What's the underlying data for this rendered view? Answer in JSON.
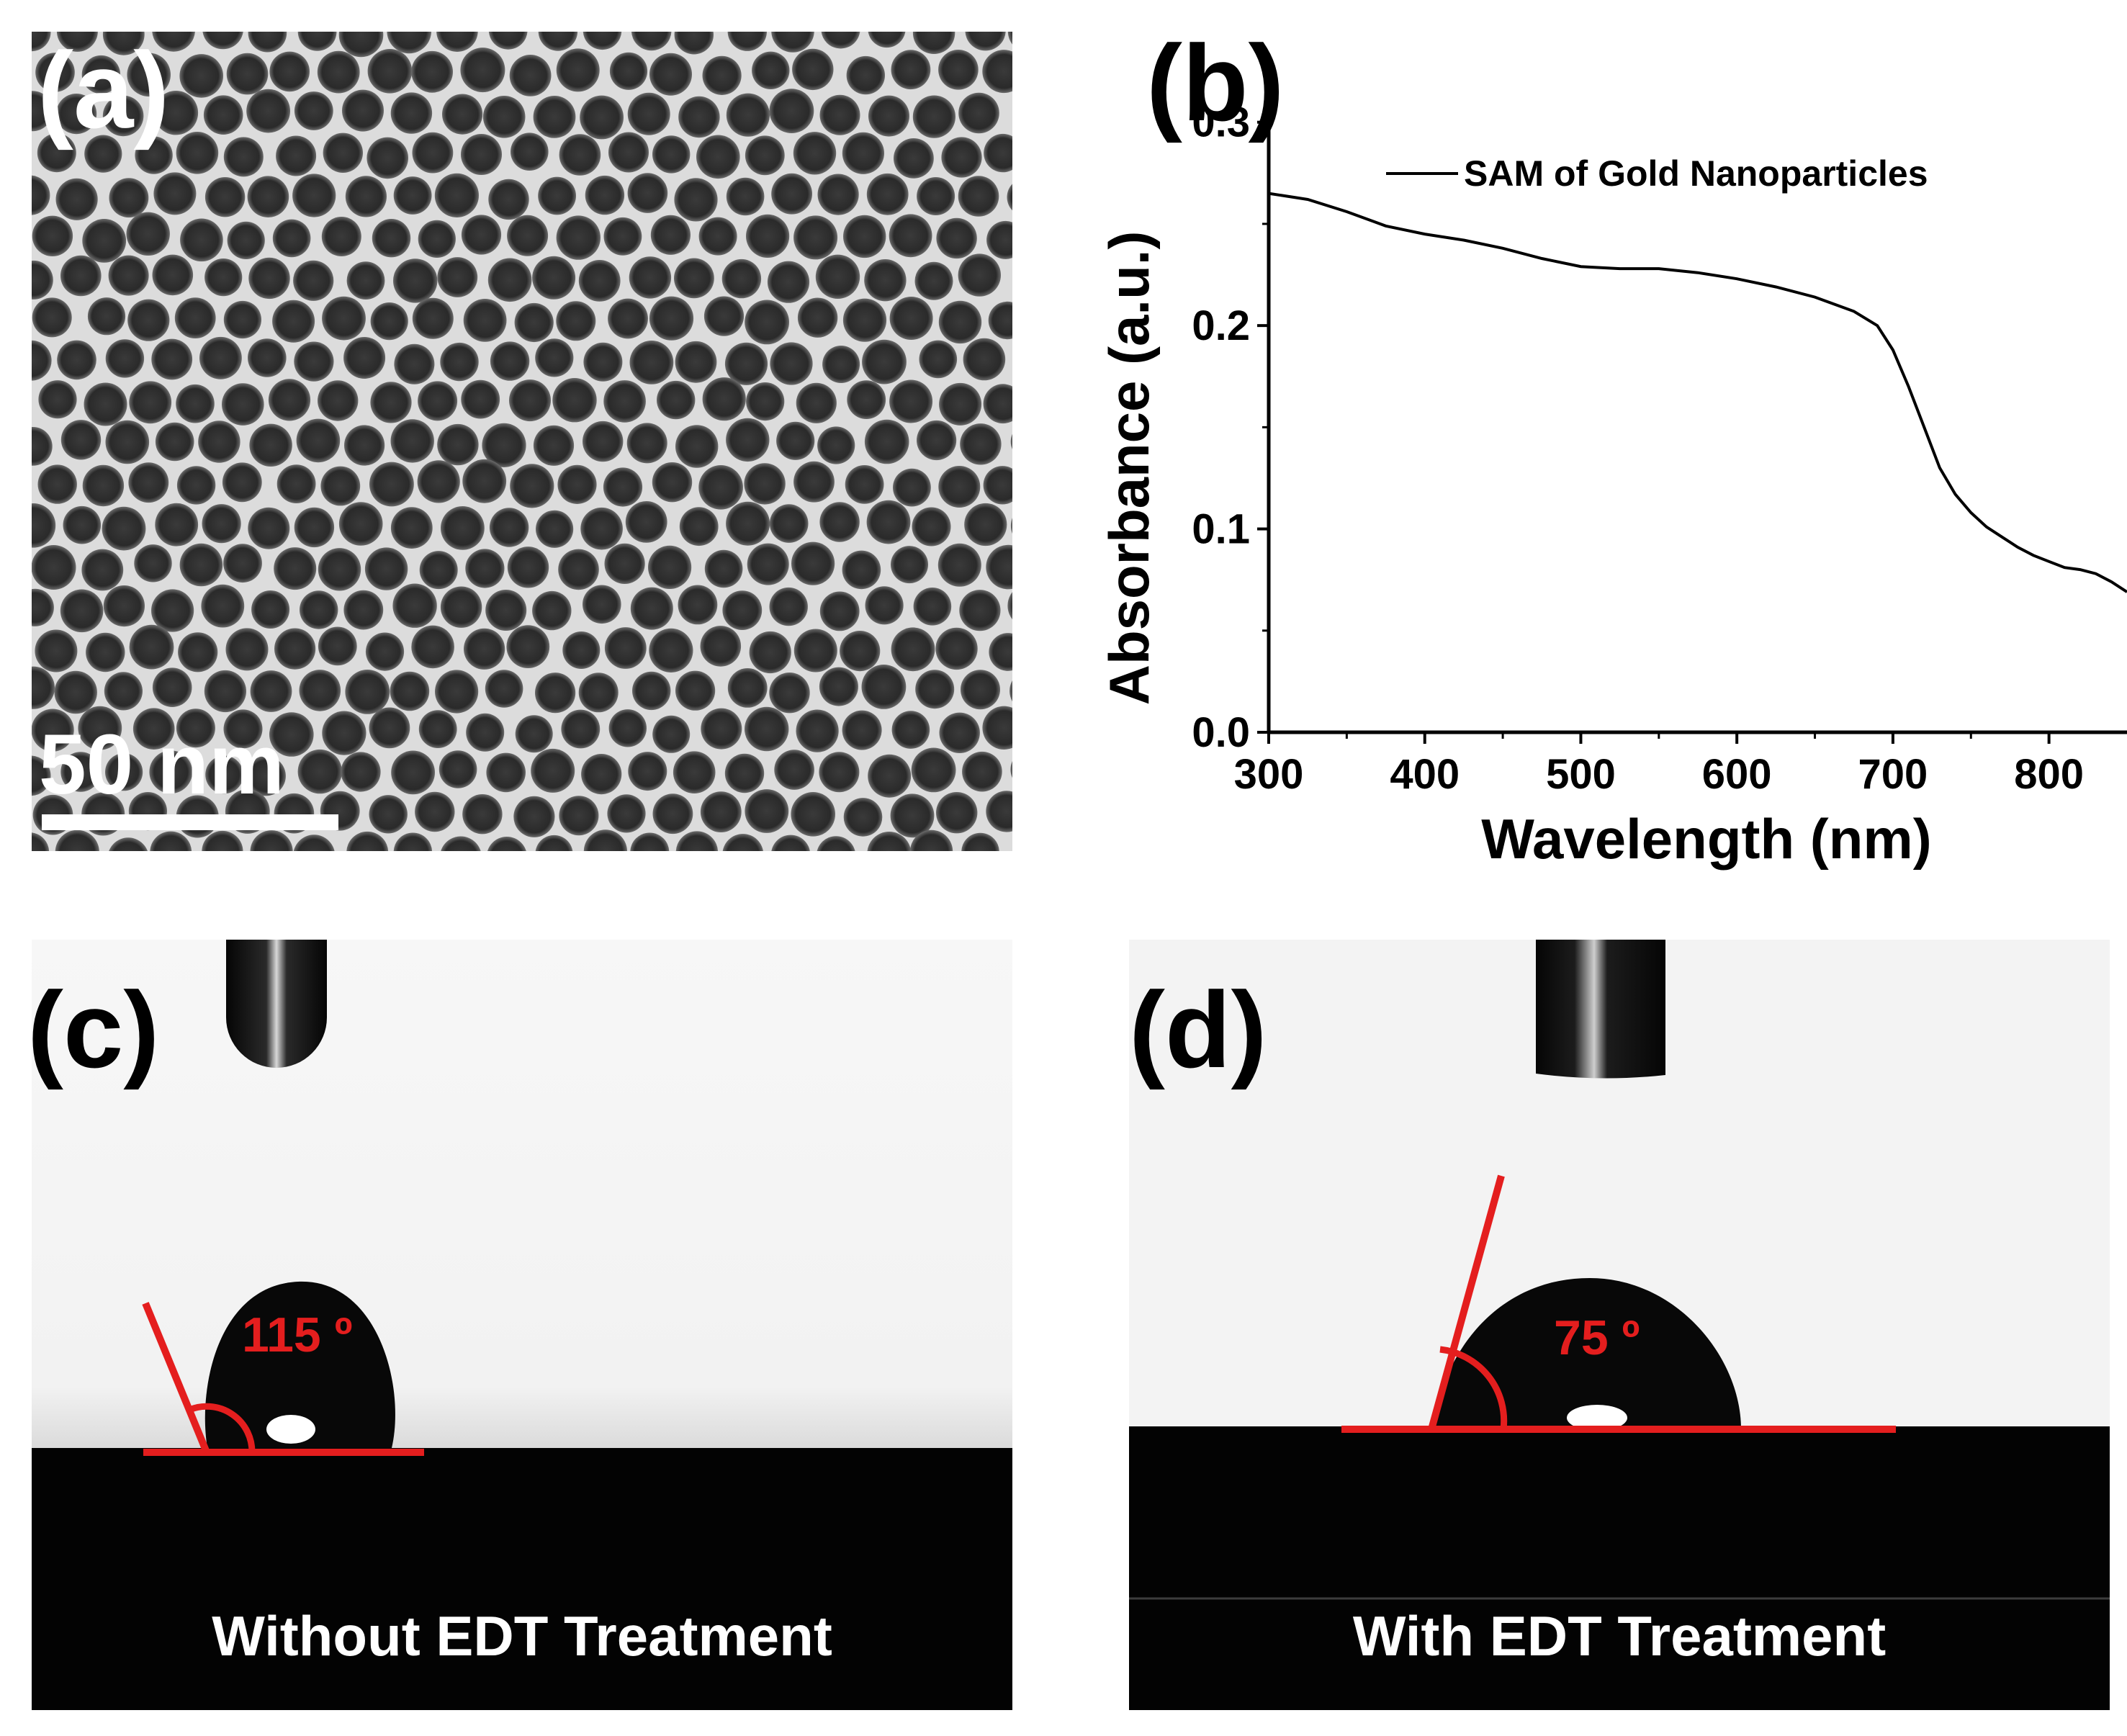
{
  "panels": {
    "a": {
      "label": "(a)",
      "scale_bar_text": "50 nm"
    },
    "b": {
      "label": "(b)"
    },
    "c": {
      "label": "(c)",
      "angle_text": "115 º",
      "caption": "Without EDT Treatment"
    },
    "d": {
      "label": "(d)",
      "angle_text": "75 º",
      "caption": "With EDT Treatment"
    }
  },
  "colors": {
    "annotation_red": "#e41e1e",
    "trace": "#000000"
  },
  "chart_data": {
    "type": "line",
    "title": "",
    "xlabel": "Wavelength (nm)",
    "ylabel": "Absorbance (a.u.)",
    "xlim": [
      300,
      850
    ],
    "ylim": [
      0.0,
      0.33
    ],
    "xticks": [
      300,
      400,
      500,
      600,
      700,
      800
    ],
    "xtick_labels": [
      "300",
      "400",
      "500",
      "600",
      "700",
      "800"
    ],
    "yticks": [
      0.0,
      0.1,
      0.2,
      0.3
    ],
    "ytick_labels": [
      "0.0",
      "0.1",
      "0.2",
      "0.3"
    ],
    "legend_position": "top-right",
    "series": [
      {
        "name": "SAM of Gold Nanoparticles",
        "x": [
          300,
          325,
          350,
          375,
          400,
          425,
          450,
          475,
          500,
          525,
          550,
          575,
          600,
          625,
          650,
          675,
          690,
          700,
          710,
          720,
          730,
          740,
          750,
          760,
          770,
          780,
          790,
          800,
          810,
          820,
          830,
          840,
          850
        ],
        "y": [
          0.265,
          0.262,
          0.256,
          0.249,
          0.245,
          0.242,
          0.238,
          0.233,
          0.229,
          0.228,
          0.228,
          0.226,
          0.223,
          0.219,
          0.214,
          0.207,
          0.2,
          0.188,
          0.17,
          0.15,
          0.13,
          0.117,
          0.108,
          0.101,
          0.096,
          0.091,
          0.087,
          0.084,
          0.081,
          0.08,
          0.078,
          0.074,
          0.069
        ]
      }
    ]
  }
}
